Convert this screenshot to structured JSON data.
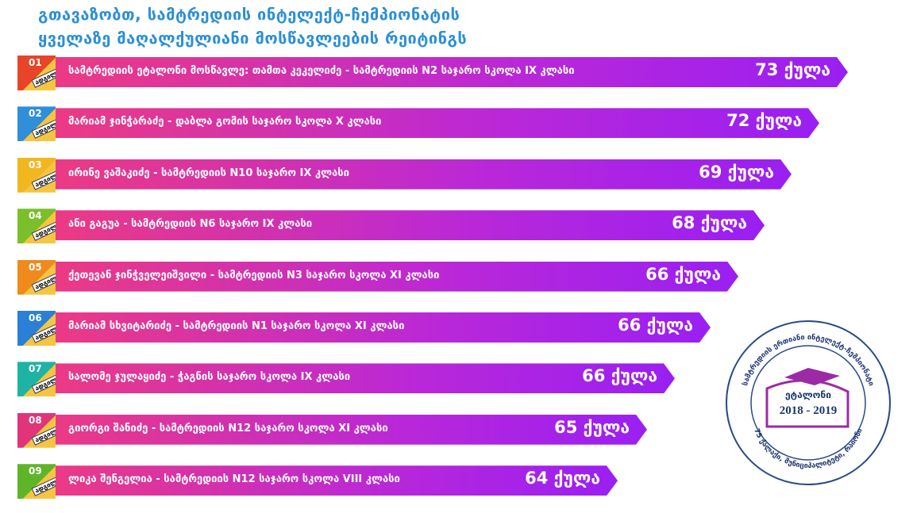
{
  "header": {
    "title_line1": "გთავაზობთ, სამტრედიის ინტელექტ-ჩემპიონატის",
    "title_line2": "ყველაზე მაღალქულიანი მოსწავლეების რეიტინგს"
  },
  "rows": [
    {
      "rank": "01",
      "place": "ადგილი",
      "text": "სამტრედიის ეტალონი მოსწავლე: თამთა კეკელიძე - სამტრედიის N2 საჯარო სკოლა IX კლასი",
      "score": "73 ქულა"
    },
    {
      "rank": "02",
      "place": "ადგილი",
      "text": "მარიამ ჯინჭარაძე -  დაბლა გომის საჯარო სკოლა X კლასი",
      "score": "72 ქულა"
    },
    {
      "rank": "03",
      "place": "ადგილი",
      "text": "ირინე ვაშაკიძე - სამტრედიის N10 საჯარო IX კლასი",
      "score": "69 ქულა"
    },
    {
      "rank": "04",
      "place": "ადგილი",
      "text": "ანი გაგუა - სამტრედიის N6 საჯარო IX კლასი",
      "score": "68 ქულა"
    },
    {
      "rank": "05",
      "place": "ადგილი",
      "text": "ქეთევან ჯინჭველეიშვილი - სამტრედიის N3 საჯარო სკოლა XI კლასი",
      "score": "66 ქულა"
    },
    {
      "rank": "06",
      "place": "ადგილი",
      "text": "მარიამ სხვიტარიძე - სამტრედიის N1 საჯარო სკოლა XI კლასი",
      "score": "66 ქულა"
    },
    {
      "rank": "07",
      "place": "ადგილი",
      "text": "სალომე ჯულაყიძე - ჭაგნის საჯარო სკოლა IX კლასი",
      "score": "66 ქულა"
    },
    {
      "rank": "08",
      "place": "ადგილი",
      "text": "გიორგი შანიძე - სამტრედიის N12 საჯარო სკოლა XI კლასი",
      "score": "65 ქულა"
    },
    {
      "rank": "09",
      "place": "ადგილი",
      "text": "ლიკა შენგელია - სამტრედიის N12 საჯარო სკოლა VIII კლასი",
      "score": "64 ქულა"
    }
  ],
  "seal": {
    "center": "ეტალონი",
    "years": "2018 - 2019",
    "ring_top": "სამტრედიის ერთიანი ინტელექტ-ჩემპიონატი",
    "ring_bottom": "75 ქალაქი, მუნიციპალიტეტი, რაიონი"
  }
}
